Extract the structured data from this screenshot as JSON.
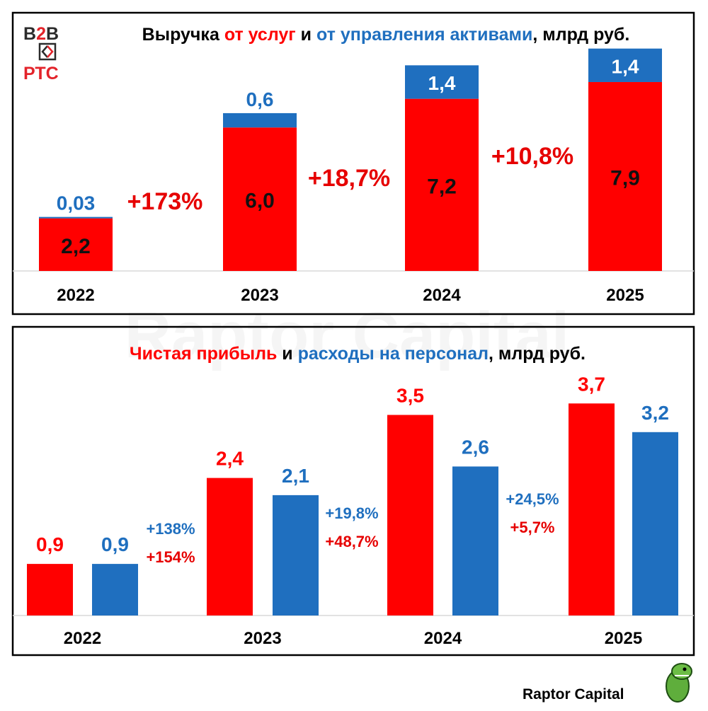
{
  "colors": {
    "red": "#ff0000",
    "blue": "#1f6fbf",
    "growth_red": "#e60000",
    "growth_blue": "#1f6fbf"
  },
  "logo": {
    "line1": "B2B",
    "line2": "РТС"
  },
  "watermark": "Raptor Capital",
  "signature": "Raptor Capital",
  "chart_data": [
    {
      "type": "bar",
      "stacked": true,
      "title_parts": [
        {
          "text": "Выручка ",
          "color": "black"
        },
        {
          "text": "от услуг",
          "color": "red"
        },
        {
          "text": " и ",
          "color": "black"
        },
        {
          "text": "от управления активами",
          "color": "blue"
        },
        {
          "text": ", млрд руб.",
          "color": "black"
        }
      ],
      "categories": [
        "2022",
        "2023",
        "2024",
        "2025"
      ],
      "series": [
        {
          "key": "services",
          "color": "red",
          "values": [
            2.2,
            6.0,
            7.2,
            7.9
          ],
          "labels": [
            "2,2",
            "6,0",
            "7,2",
            "7,9"
          ]
        },
        {
          "key": "asset_mgmt",
          "color": "blue",
          "values": [
            0.03,
            0.6,
            1.4,
            1.4
          ],
          "labels": [
            "0,03",
            "0,6",
            "1,4",
            "1,4"
          ]
        }
      ],
      "growth_labels": [
        "+173%",
        "+18,7%",
        "+10,8%"
      ],
      "grid": false
    },
    {
      "type": "bar",
      "grouped": true,
      "title_parts": [
        {
          "text": "Чистая прибыль",
          "color": "red"
        },
        {
          "text": " и ",
          "color": "black"
        },
        {
          "text": "расходы на персонал",
          "color": "blue"
        },
        {
          "text": ", млрд руб.",
          "color": "black"
        }
      ],
      "categories": [
        "2022",
        "2023",
        "2024",
        "2025"
      ],
      "series": [
        {
          "key": "net_profit",
          "color": "red",
          "values": [
            0.9,
            2.4,
            3.5,
            3.7
          ],
          "labels": [
            "0,9",
            "2,4",
            "3,5",
            "3,7"
          ]
        },
        {
          "key": "staff_costs",
          "color": "blue",
          "values": [
            0.9,
            2.1,
            2.6,
            3.2
          ],
          "labels": [
            "0,9",
            "2,1",
            "2,6",
            "3,2"
          ]
        }
      ],
      "growth_labels": [
        {
          "blue": "+138%",
          "red": "+154%"
        },
        {
          "blue": "+19,8%",
          "red": "+48,7%"
        },
        {
          "blue": "+24,5%",
          "red": "+5,7%"
        }
      ],
      "grid": false
    }
  ]
}
